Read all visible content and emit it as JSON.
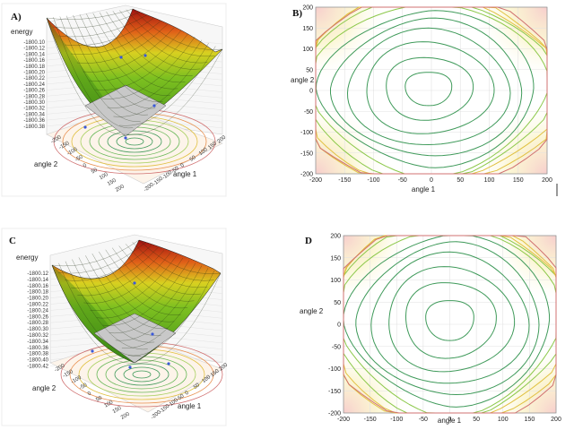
{
  "chart_data": [
    {
      "panel": "A)",
      "type": "surface3d",
      "zlabel": "energy",
      "xlabel": "angle 1",
      "ylabel": "angle 2",
      "z_ticks": [
        "-1800.10",
        "-1800.12",
        "-1800.14",
        "-1800.16",
        "-1800.18",
        "-1800.20",
        "-1800.22",
        "-1800.24",
        "-1800.26",
        "-1800.28",
        "-1800.30",
        "-1800.32",
        "-1800.34",
        "-1800.36",
        "-1800.38"
      ],
      "x_ticks": [
        "-200",
        "-150",
        "-100",
        "-50",
        "0",
        "50",
        "100",
        "150",
        "200"
      ],
      "y_ticks": [
        "-200",
        "-150",
        "-100",
        "-50",
        "0",
        "50",
        "100",
        "150",
        "200"
      ],
      "colors": [
        "#4a9a1a",
        "#9ac81a",
        "#e8d020",
        "#e06018",
        "#a01818"
      ]
    },
    {
      "panel": "B)",
      "type": "contour",
      "xlabel": "angle 1",
      "ylabel": "angle 2",
      "x_ticks": [
        "-200",
        "-150",
        "-100",
        "-50",
        "0",
        "50",
        "100",
        "150",
        "200"
      ],
      "y_ticks": [
        "200",
        "150",
        "100",
        "50",
        "0",
        "-50",
        "-100",
        "-150",
        "-200"
      ],
      "xlim": [
        -200,
        200
      ],
      "ylim": [
        -200,
        200
      ],
      "contour_levels": [
        40,
        75,
        110,
        140,
        165,
        188,
        210,
        230,
        248,
        264,
        278
      ],
      "center": [
        -5,
        5
      ],
      "grid": true
    },
    {
      "panel": "C",
      "type": "surface3d",
      "zlabel": "energy",
      "xlabel": "angle 1",
      "ylabel": "angle 2",
      "z_ticks": [
        "-1800.12",
        "-1800.14",
        "-1800.16",
        "-1800.18",
        "-1800.20",
        "-1800.22",
        "-1800.24",
        "-1800.26",
        "-1800.28",
        "-1800.30",
        "-1800.32",
        "-1800.34",
        "-1800.36",
        "-1800.38",
        "-1800.40",
        "-1800.42"
      ],
      "x_ticks": [
        "-200",
        "-150",
        "-100",
        "-50",
        "0",
        "50",
        "100",
        "150",
        "200"
      ],
      "y_ticks": [
        "-200",
        "-150",
        "-100",
        "-50",
        "0",
        "50",
        "100",
        "150",
        "200"
      ],
      "colors": [
        "#4a9a1a",
        "#9ac81a",
        "#e8d020",
        "#e06018",
        "#a01818"
      ]
    },
    {
      "panel": "D",
      "type": "contour",
      "xlabel": "angle 1",
      "ylabel": "angle 2",
      "x_ticks": [
        "-200",
        "-150",
        "-100",
        "-50",
        "0",
        "50",
        "100",
        "150",
        "200"
      ],
      "y_ticks": [
        "200",
        "150",
        "100",
        "50",
        "0",
        "-50",
        "-100",
        "-150",
        "-200"
      ],
      "xlim": [
        -200,
        200
      ],
      "ylim": [
        -200,
        200
      ],
      "contour_levels": [
        45,
        85,
        118,
        148,
        172,
        194,
        215,
        234,
        252,
        268,
        282
      ],
      "center": [
        0,
        10
      ],
      "grid": true
    }
  ]
}
